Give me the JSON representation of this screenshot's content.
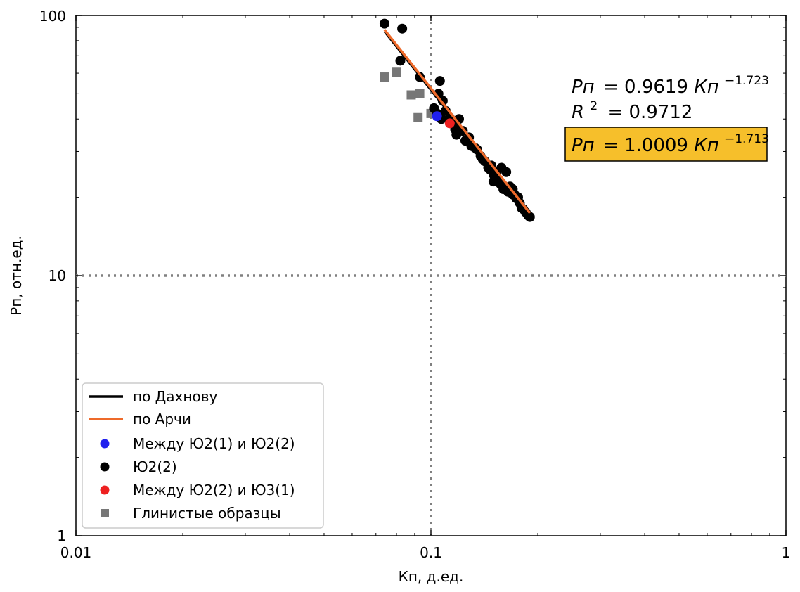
{
  "chart_data": {
    "type": "scatter",
    "x_scale": "log",
    "y_scale": "log",
    "xlim": [
      0.01,
      1
    ],
    "ylim": [
      1,
      100
    ],
    "xlabel": "Кп, д.ед.",
    "ylabel": "Рп, отн.ед.",
    "x_ticks": [
      "0.01",
      "0.1",
      "1"
    ],
    "y_ticks": [
      "1",
      "10",
      "100"
    ],
    "reference_lines": {
      "x": 0.1,
      "y": 10,
      "style": "dotted",
      "color": "#808080"
    },
    "legend_placement": "lower-left",
    "series": [
      {
        "name": "по Дахнову",
        "kind": "line",
        "color": "#000000",
        "x": [
          0.074,
          0.19
        ],
        "y": [
          86.7,
          17.1
        ]
      },
      {
        "name": "по Арчи",
        "kind": "line",
        "color": "#ee6a2a",
        "x": [
          0.074,
          0.19
        ],
        "y": [
          88.1,
          17.4
        ]
      },
      {
        "name": "Между Ю2(1) и Ю2(2)",
        "kind": "scatter",
        "marker": "circle",
        "color": "#2020ee",
        "x": [
          0.104
        ],
        "y": [
          41.0
        ]
      },
      {
        "name": "Ю2(2)",
        "kind": "scatter",
        "marker": "circle",
        "color": "#000000",
        "x": [
          0.074,
          0.083,
          0.082,
          0.093,
          0.102,
          0.105,
          0.106,
          0.108,
          0.104,
          0.107,
          0.11,
          0.113,
          0.115,
          0.118,
          0.12,
          0.117,
          0.123,
          0.125,
          0.128,
          0.13,
          0.133,
          0.135,
          0.138,
          0.14,
          0.142,
          0.145,
          0.147,
          0.15,
          0.148,
          0.152,
          0.155,
          0.153,
          0.157,
          0.16,
          0.158,
          0.162,
          0.165,
          0.163,
          0.167,
          0.17,
          0.172,
          0.174,
          0.176,
          0.178,
          0.18,
          0.182,
          0.185,
          0.188,
          0.19,
          0.15,
          0.16,
          0.17
        ],
        "y": [
          93.0,
          89.0,
          67.0,
          58.0,
          44.0,
          50.0,
          56.0,
          47.0,
          42.0,
          40.0,
          43.0,
          40.5,
          38.5,
          34.8,
          40.0,
          36.5,
          36.0,
          33.0,
          34.0,
          31.5,
          31.0,
          30.5,
          28.8,
          28.0,
          27.5,
          26.0,
          25.5,
          24.5,
          26.5,
          24.0,
          23.2,
          25.0,
          22.5,
          21.5,
          26.0,
          21.8,
          21.0,
          25.0,
          22.0,
          20.5,
          20.5,
          19.8,
          20.0,
          19.0,
          18.2,
          18.0,
          17.5,
          17.0,
          16.8,
          23.0,
          22.0,
          21.5
        ]
      },
      {
        "name": "Между Ю2(2) и Ю3(1)",
        "kind": "scatter",
        "marker": "circle",
        "color": "#ee2020",
        "x": [
          0.113
        ],
        "y": [
          38.5
        ]
      },
      {
        "name": "Глинистые образцы",
        "kind": "scatter",
        "marker": "square",
        "color": "#777777",
        "x": [
          0.074,
          0.08,
          0.088,
          0.093,
          0.092,
          0.1
        ],
        "y": [
          58.0,
          60.5,
          49.5,
          50.0,
          40.5,
          42.0
        ]
      }
    ],
    "annotations": {
      "equation1": {
        "lhs": "Рп",
        "rhs_coef": "= 0.9619",
        "var": "Кп",
        "exp": "−1.723"
      },
      "r2": {
        "lhs": "R",
        "sup": "2",
        "rhs": "= 0.9712"
      },
      "equation2": {
        "lhs": "Рп",
        "rhs_coef": "= 1.0009",
        "var": "Кп",
        "exp": "−1.713",
        "box_color": "#f6bf2b"
      }
    }
  }
}
